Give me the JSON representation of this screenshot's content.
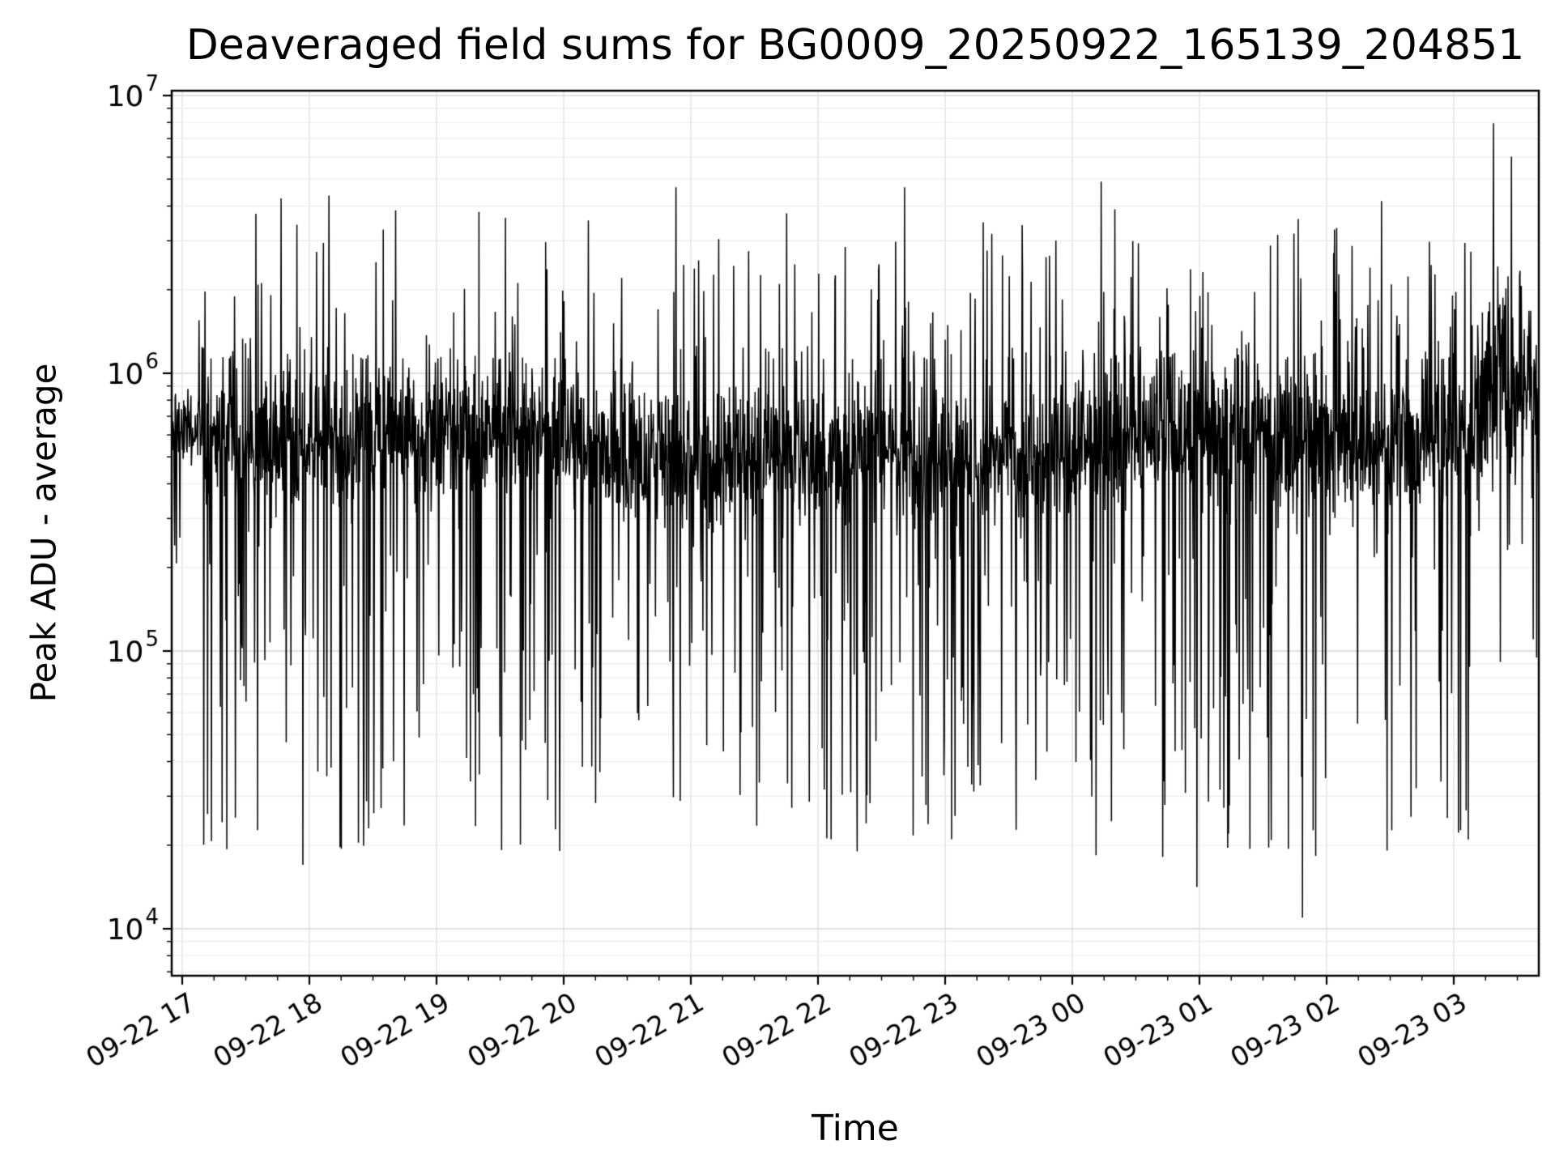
{
  "chart_data": {
    "type": "line",
    "title": "Deaveraged field sums for BG0009_20250922_165139_204851",
    "xlabel": "Time",
    "ylabel": "Peak ADU - average",
    "y_scale": "log",
    "ylim": [
      6800,
      10400000
    ],
    "y_tick_labels": [
      "10^4",
      "10^5",
      "10^6",
      "10^7"
    ],
    "y_tick_exponents": [
      4,
      5,
      6,
      7
    ],
    "x_tick_labels": [
      "09-22 17",
      "09-22 18",
      "09-22 19",
      "09-22 20",
      "09-22 21",
      "09-22 22",
      "09-22 23",
      "09-23 00",
      "09-23 01",
      "09-23 02",
      "09-23 03"
    ],
    "x_range_description": "approx 09-22 16:55 to 09-23 03:40, hourly major ticks",
    "grid": true,
    "legend": "none",
    "line_color": "#000000",
    "background": "#ffffff",
    "grid_major_color": "#d6d6d6",
    "grid_minor_color": "#ececec",
    "grid_vertical_color": "#e2e2e2",
    "series_note": "Dense high-frequency noisy signal: main band ~3e5-1.2e6 ADU, frequent downward spikes to ~2e4-1e5, upward spikes to ~2e6-5e6, extremes listed in notable_points. Band tightens and rises toward ~1e6-2e6 after 09-23 03:05 with tallest spike ~8e6.",
    "signal_model": {
      "seed": 42,
      "n_points": 3200,
      "baseline_log10": 5.74,
      "band_sigma_log10": 0.13,
      "down_spike_prob": 0.13,
      "down_spike_log10_range": [
        4.25,
        5.35
      ],
      "up_spike_prob": 0.07,
      "up_spike_log10_range": [
        6.05,
        6.6
      ],
      "start_quiet_frac": 0.02,
      "end_rise_frac": 0.953,
      "end_baseline_log10": 5.93,
      "end_sigma_log10": 0.16
    },
    "notable_points": [
      {
        "x_frac": 0.967,
        "value_log10": 6.9
      },
      {
        "x_frac": 0.98,
        "value_log10": 6.78
      },
      {
        "x_frac": 0.827,
        "value_log10": 4.04
      },
      {
        "x_frac": 0.75,
        "value_log10": 4.15
      },
      {
        "x_frac": 0.096,
        "value_log10": 4.23
      },
      {
        "x_frac": 0.08,
        "value_log10": 6.63
      },
      {
        "x_frac": 0.115,
        "value_log10": 6.64
      },
      {
        "x_frac": 0.369,
        "value_log10": 6.67
      },
      {
        "x_frac": 0.536,
        "value_log10": 6.67
      },
      {
        "x_frac": 0.68,
        "value_log10": 6.69
      },
      {
        "x_frac": 0.885,
        "value_log10": 6.62
      }
    ]
  }
}
